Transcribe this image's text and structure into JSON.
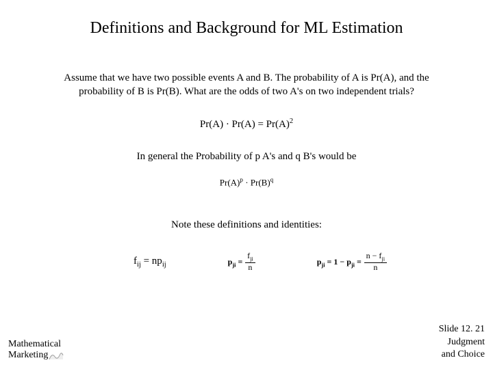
{
  "title": "Definitions and Background for ML Estimation",
  "body_text": "Assume that we have two possible events A and B.  The probability of A is Pr(A), and the probability of B is Pr(B).  What are the odds of two A's on two independent trials?",
  "formula1_html": "Pr(A) · Pr(A) = Pr(A)<sup>2</sup>",
  "general_text": "In general the Probability of p A's and q B's would be",
  "formula2_html": "Pr(A)<sup>p</sup> · Pr(B)<sup>q</sup>",
  "definitions_text": "Note these definitions and identities:",
  "formula3_html": "f<sub>ij</sub> = np<sub>ij</sub>",
  "formula4_html": "<span class=\"small-formula\">p<sub>ji</sub> =</span> <span class=\"fraction\"><span class=\"num\">f<sub>ji</sub></span><span class=\"den\">n</span></span>",
  "formula5_html": "<span class=\"small-formula\"><b>p</b><sub>ji</sub> = 1 − p<sub>ji</sub> =</span> <span class=\"fraction\"><span class=\"num\">n − f<sub>ji</sub></span><span class=\"den\">n</span></span>",
  "footer": {
    "left_line1": "Mathematical",
    "left_line2": "Marketing",
    "right_line1": "Slide 12. 21",
    "right_line2": "Judgment",
    "right_line3": "and Choice"
  },
  "colors": {
    "background": "#ffffff",
    "text": "#000000"
  }
}
